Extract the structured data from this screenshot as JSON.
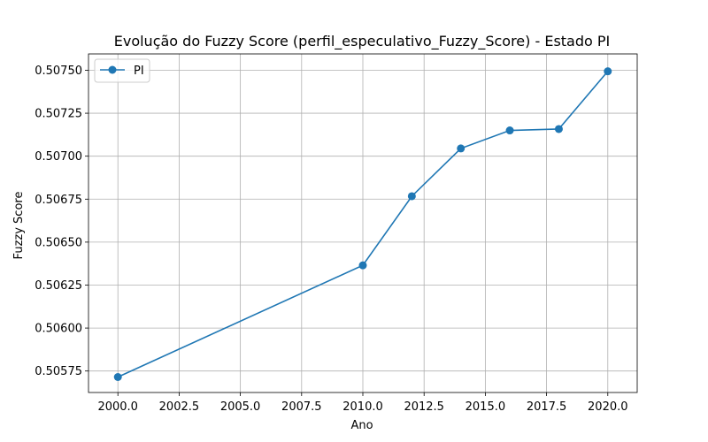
{
  "chart_data": {
    "type": "line",
    "title": "Evolução do Fuzzy Score (perfil_especulativo_Fuzzy_Score) - Estado PI",
    "xlabel": "Ano",
    "ylabel": "Fuzzy Score",
    "xlim": [
      1998.8,
      2021.2
    ],
    "ylim": [
      0.505625,
      0.507595
    ],
    "xticks": [
      2000,
      2002.5,
      2005,
      2007.5,
      2010,
      2012.5,
      2015,
      2017.5,
      2020
    ],
    "xtick_labels": [
      "2000.0",
      "2002.5",
      "2005.0",
      "2007.5",
      "2010.0",
      "2012.5",
      "2015.0",
      "2017.5",
      "2020.0"
    ],
    "yticks": [
      0.50575,
      0.506,
      0.50625,
      0.5065,
      0.50675,
      0.507,
      0.50725,
      0.5075
    ],
    "ytick_labels": [
      "0.50575",
      "0.50600",
      "0.50625",
      "0.50650",
      "0.50675",
      "0.50700",
      "0.50725",
      "0.50750"
    ],
    "grid": true,
    "legend_position": "top-left",
    "series": [
      {
        "name": "PI",
        "color": "#1f77b4",
        "marker": "circle",
        "x": [
          2000,
          2010,
          2012,
          2014,
          2016,
          2018,
          2020
        ],
        "values": [
          0.505715,
          0.506365,
          0.506767,
          0.507045,
          0.50715,
          0.507158,
          0.507494
        ]
      }
    ]
  }
}
